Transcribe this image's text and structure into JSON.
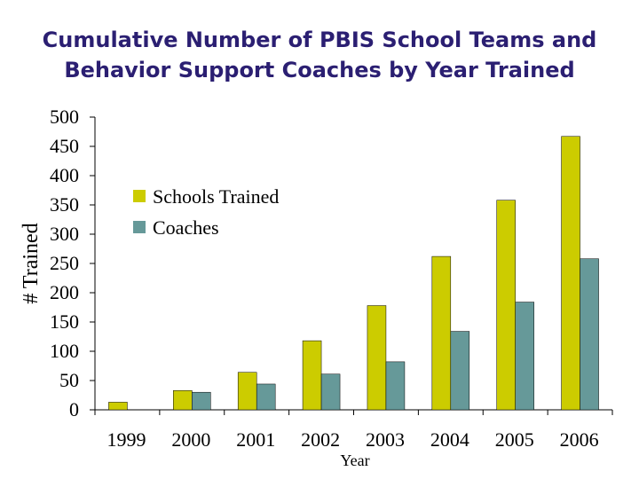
{
  "chart_data": {
    "type": "bar",
    "title": "Cumulative Number of PBIS School Teams and Behavior Support Coaches by Year Trained",
    "title_lines": [
      "Cumulative Number of PBIS School Teams and",
      "Behavior Support Coaches by Year Trained"
    ],
    "xlabel": "Year",
    "ylabel": "# Trained",
    "categories": [
      "1999",
      "2000",
      "2001",
      "2002",
      "2003",
      "2004",
      "2005",
      "2006"
    ],
    "series": [
      {
        "name": "Schools Trained",
        "color": "#cccc00",
        "values": [
          13,
          33,
          64,
          118,
          178,
          262,
          358,
          467
        ]
      },
      {
        "name": "Coaches",
        "color": "#669999",
        "values": [
          null,
          30,
          44,
          61,
          82,
          134,
          184,
          258
        ]
      }
    ],
    "ylim": [
      0,
      500
    ],
    "yticks": [
      0,
      50,
      100,
      150,
      200,
      250,
      300,
      350,
      400,
      450,
      500
    ],
    "grid": false,
    "legend_position": "upper-left"
  }
}
